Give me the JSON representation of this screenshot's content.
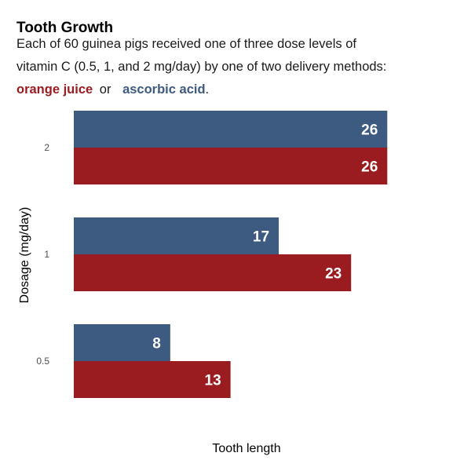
{
  "chart_data": {
    "type": "bar",
    "orientation": "horizontal",
    "title": "Tooth Growth",
    "subtitle": {
      "line1": "Each of 60 guinea pigs received one of three dose levels of",
      "line2": "vitamin C (0.5, 1, and 2 mg/day) by one of two delivery methods:",
      "oj_label": "orange juice",
      "connector": "or",
      "aa_label": "ascorbic acid",
      "end": "."
    },
    "xlabel": "Tooth length",
    "ylabel": "Dosage (mg/day)",
    "categories": [
      "2",
      "1",
      "0.5"
    ],
    "xlim": [
      0,
      28
    ],
    "grid": false,
    "series": [
      {
        "name": "ascorbic acid",
        "color": "#3d5a80",
        "values": [
          26,
          17,
          8
        ],
        "labels": [
          "26",
          "17",
          "8"
        ]
      },
      {
        "name": "orange juice",
        "color": "#9b1c20",
        "values": [
          26,
          23,
          13
        ],
        "labels": [
          "26",
          "23",
          "13"
        ]
      }
    ]
  }
}
